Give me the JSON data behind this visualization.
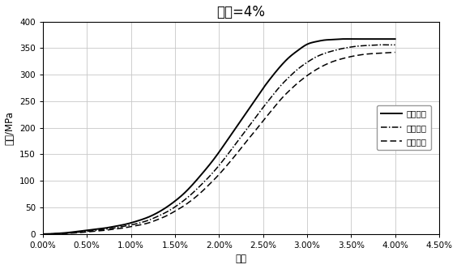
{
  "title": "应变=4%",
  "xlabel": "应变",
  "ylabel": "应力/MPa",
  "xlim": [
    0.0,
    0.045
  ],
  "ylim": [
    0,
    400
  ],
  "xticks": [
    0.0,
    0.005,
    0.01,
    0.015,
    0.02,
    0.025,
    0.03,
    0.035,
    0.04,
    0.045
  ],
  "yticks": [
    0,
    50,
    100,
    150,
    200,
    250,
    300,
    350,
    400
  ],
  "series": [
    {
      "label": "第一循环",
      "linestyle": "solid",
      "linewidth": 1.4,
      "color": "#000000",
      "x": [
        0.0,
        0.001,
        0.002,
        0.003,
        0.004,
        0.005,
        0.006,
        0.007,
        0.008,
        0.009,
        0.01,
        0.011,
        0.012,
        0.013,
        0.014,
        0.015,
        0.016,
        0.017,
        0.018,
        0.019,
        0.02,
        0.021,
        0.022,
        0.023,
        0.024,
        0.025,
        0.026,
        0.027,
        0.028,
        0.029,
        0.03,
        0.031,
        0.032,
        0.033,
        0.034,
        0.035,
        0.036,
        0.037,
        0.038,
        0.039,
        0.04
      ],
      "y": [
        0,
        0.5,
        1.5,
        3,
        5,
        7,
        9,
        11,
        14,
        17,
        21,
        26,
        32,
        40,
        50,
        62,
        76,
        93,
        112,
        132,
        154,
        178,
        202,
        226,
        250,
        274,
        296,
        316,
        333,
        346,
        357,
        362,
        365,
        366,
        367,
        367,
        367,
        367,
        367,
        367,
        367
      ]
    },
    {
      "label": "第二循环",
      "linestyle": "dashdot",
      "linewidth": 1.1,
      "color": "#000000",
      "x": [
        0.0,
        0.001,
        0.002,
        0.003,
        0.004,
        0.005,
        0.006,
        0.007,
        0.008,
        0.009,
        0.01,
        0.011,
        0.012,
        0.013,
        0.014,
        0.015,
        0.016,
        0.017,
        0.018,
        0.019,
        0.02,
        0.021,
        0.022,
        0.023,
        0.024,
        0.025,
        0.026,
        0.027,
        0.028,
        0.029,
        0.03,
        0.031,
        0.032,
        0.033,
        0.034,
        0.035,
        0.036,
        0.037,
        0.038,
        0.039,
        0.04
      ],
      "y": [
        0,
        0.3,
        1,
        2,
        3.5,
        5,
        7,
        9,
        11,
        14,
        17,
        21,
        26,
        33,
        41,
        51,
        63,
        77,
        93,
        110,
        129,
        150,
        172,
        194,
        216,
        238,
        259,
        279,
        296,
        311,
        323,
        333,
        340,
        345,
        349,
        352,
        354,
        355,
        356,
        356,
        356
      ]
    },
    {
      "label": "第三循环",
      "linestyle": "dashed",
      "linewidth": 1.1,
      "color": "#000000",
      "x": [
        0.0,
        0.001,
        0.002,
        0.003,
        0.004,
        0.005,
        0.006,
        0.007,
        0.008,
        0.009,
        0.01,
        0.011,
        0.012,
        0.013,
        0.014,
        0.015,
        0.016,
        0.017,
        0.018,
        0.019,
        0.02,
        0.021,
        0.022,
        0.023,
        0.024,
        0.025,
        0.026,
        0.027,
        0.028,
        0.029,
        0.03,
        0.031,
        0.032,
        0.033,
        0.034,
        0.035,
        0.036,
        0.037,
        0.038,
        0.039,
        0.04
      ],
      "y": [
        0,
        0.2,
        0.8,
        1.5,
        2.5,
        4,
        5.5,
        7,
        9,
        11,
        14,
        17,
        21,
        27,
        34,
        43,
        53,
        65,
        79,
        95,
        112,
        131,
        151,
        172,
        192,
        213,
        233,
        253,
        270,
        285,
        298,
        309,
        318,
        325,
        330,
        334,
        337,
        339,
        340,
        341,
        342
      ]
    }
  ],
  "background_color": "#ffffff",
  "grid_color": "#c8c8c8",
  "border_color": "#000000",
  "legend_fontsize": 7.5,
  "title_fontsize": 12,
  "axis_fontsize": 8.5
}
